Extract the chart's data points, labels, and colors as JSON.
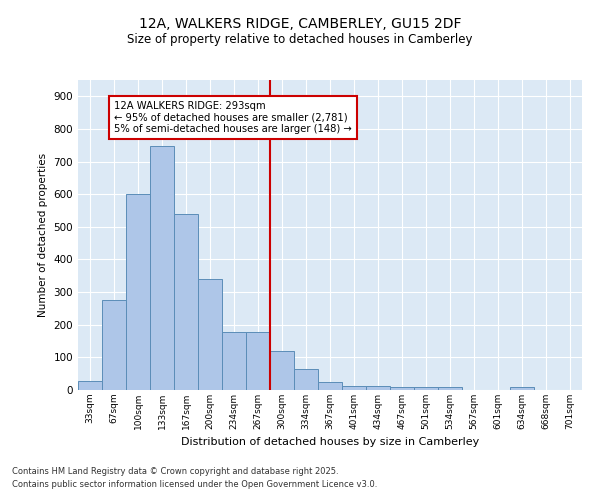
{
  "title1": "12A, WALKERS RIDGE, CAMBERLEY, GU15 2DF",
  "title2": "Size of property relative to detached houses in Camberley",
  "xlabel": "Distribution of detached houses by size in Camberley",
  "ylabel": "Number of detached properties",
  "bar_labels": [
    "33sqm",
    "67sqm",
    "100sqm",
    "133sqm",
    "167sqm",
    "200sqm",
    "234sqm",
    "267sqm",
    "300sqm",
    "334sqm",
    "367sqm",
    "401sqm",
    "434sqm",
    "467sqm",
    "501sqm",
    "534sqm",
    "567sqm",
    "601sqm",
    "634sqm",
    "668sqm",
    "701sqm"
  ],
  "bar_values": [
    27,
    275,
    600,
    748,
    540,
    340,
    177,
    177,
    120,
    65,
    25,
    13,
    13,
    10,
    8,
    8,
    0,
    0,
    8,
    0,
    0
  ],
  "bar_color": "#aec6e8",
  "bar_edge_color": "#5b8db8",
  "vline_color": "#cc0000",
  "annotation_title": "12A WALKERS RIDGE: 293sqm",
  "annotation_line1": "← 95% of detached houses are smaller (2,781)",
  "annotation_line2": "5% of semi-detached houses are larger (148) →",
  "annotation_edge_color": "#cc0000",
  "ylim": [
    0,
    950
  ],
  "yticks": [
    0,
    100,
    200,
    300,
    400,
    500,
    600,
    700,
    800,
    900
  ],
  "bg_color": "#dce9f5",
  "footer1": "Contains HM Land Registry data © Crown copyright and database right 2025.",
  "footer2": "Contains public sector information licensed under the Open Government Licence v3.0."
}
